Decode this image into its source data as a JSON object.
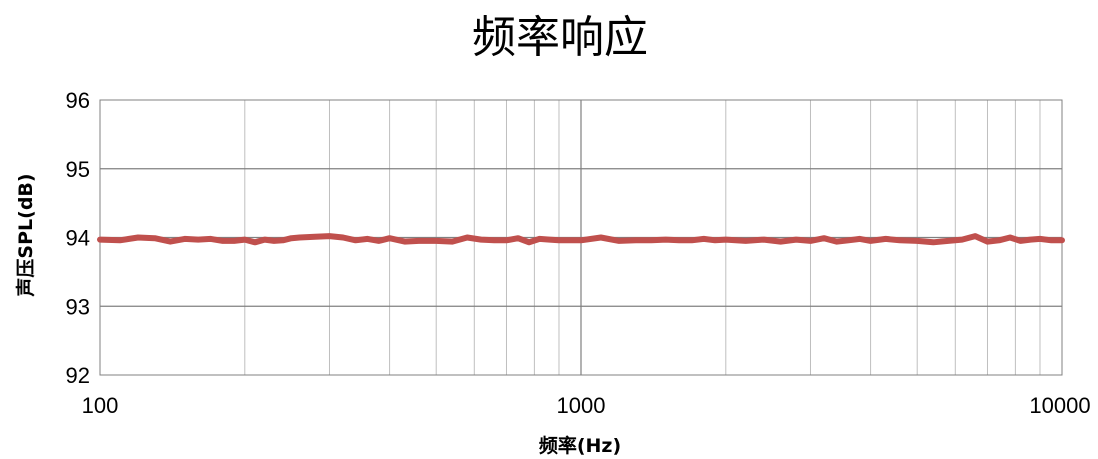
{
  "chart_data": {
    "type": "line",
    "title": "频率响应",
    "xlabel": "频率(Hz)",
    "ylabel": "声压SPL(dB)",
    "xscale": "log",
    "xlim": [
      100,
      10000
    ],
    "ylim": [
      92,
      96
    ],
    "x_ticks": [
      "100",
      "1000",
      "10000"
    ],
    "y_ticks": [
      "92",
      "93",
      "94",
      "95",
      "96"
    ],
    "grid": true,
    "legend": "none",
    "series": [
      {
        "color": "#c0504d",
        "x": [
          100,
          110,
          120,
          130,
          140,
          150,
          160,
          170,
          180,
          190,
          200,
          210,
          220,
          230,
          240,
          250,
          260,
          280,
          300,
          320,
          340,
          360,
          380,
          400,
          430,
          460,
          500,
          540,
          580,
          620,
          660,
          700,
          740,
          780,
          820,
          860,
          900,
          950,
          1000,
          1100,
          1200,
          1300,
          1400,
          1500,
          1600,
          1700,
          1800,
          1900,
          2000,
          2200,
          2400,
          2600,
          2800,
          3000,
          3200,
          3400,
          3600,
          3800,
          4000,
          4300,
          4600,
          5000,
          5400,
          5800,
          6200,
          6600,
          7000,
          7400,
          7800,
          8200,
          8600,
          9000,
          9500,
          10000
        ],
        "y": [
          93.97,
          93.96,
          94.0,
          93.99,
          93.94,
          93.98,
          93.97,
          93.98,
          93.95,
          93.95,
          93.97,
          93.93,
          93.97,
          93.95,
          93.96,
          93.99,
          94.0,
          94.01,
          94.02,
          94.0,
          93.96,
          93.98,
          93.95,
          93.99,
          93.94,
          93.95,
          93.95,
          93.94,
          94.0,
          93.97,
          93.96,
          93.96,
          93.99,
          93.93,
          93.98,
          93.97,
          93.96,
          93.96,
          93.96,
          94.0,
          93.95,
          93.96,
          93.96,
          93.97,
          93.96,
          93.96,
          93.98,
          93.96,
          93.97,
          93.95,
          93.97,
          93.94,
          93.97,
          93.95,
          93.99,
          93.94,
          93.96,
          93.98,
          93.95,
          93.98,
          93.96,
          93.95,
          93.93,
          93.95,
          93.97,
          94.02,
          93.94,
          93.96,
          94.0,
          93.95,
          93.97,
          93.98,
          93.96,
          93.96
        ]
      }
    ]
  }
}
